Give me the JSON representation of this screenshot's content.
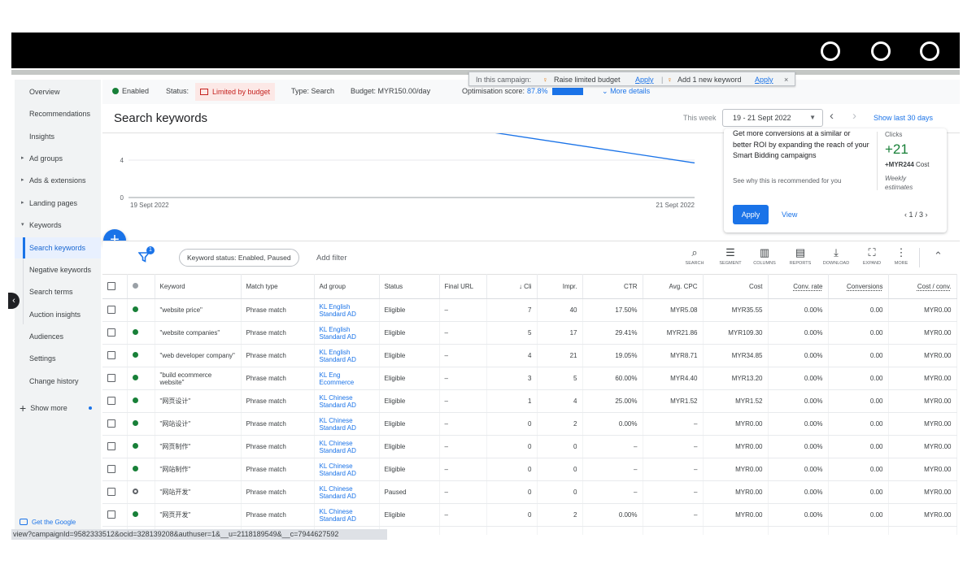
{
  "sidebar": {
    "items": [
      {
        "label": "Overview",
        "caret": ""
      },
      {
        "label": "Recommendations",
        "caret": ""
      },
      {
        "label": "Insights",
        "caret": ""
      },
      {
        "label": "Ad groups",
        "caret": "▸"
      },
      {
        "label": "Ads & extensions",
        "caret": "▸"
      },
      {
        "label": "Landing pages",
        "caret": "▸"
      },
      {
        "label": "Keywords",
        "caret": "▾"
      },
      {
        "label": "Search keywords",
        "caret": ""
      },
      {
        "label": "Negative keywords",
        "caret": ""
      },
      {
        "label": "Search terms",
        "caret": ""
      },
      {
        "label": "Auction insights",
        "caret": ""
      },
      {
        "label": "Audiences",
        "caret": ""
      },
      {
        "label": "Settings",
        "caret": ""
      },
      {
        "label": "Change history",
        "caret": ""
      }
    ],
    "show_more": "Show more",
    "get_google": "Get the Google"
  },
  "status": {
    "enabled": "Enabled",
    "status_label": "Status:",
    "limited": "Limited by budget",
    "type": "Type: Search",
    "budget": "Budget: MYR150.00/day",
    "score_label": "Optimisation score:",
    "score_value": "87.8%",
    "more_details": "More details"
  },
  "tooltip": {
    "prefix": "In this campaign:",
    "item1": "Raise limited budget",
    "item2": "Add 1 new keyword",
    "apply": "Apply",
    "close": "×"
  },
  "header": {
    "title": "Search keywords",
    "this_week": "This week",
    "date_range": "19 - 21 Sept 2022",
    "show_last": "Show last 30 days"
  },
  "chart_data": {
    "type": "line",
    "x": [
      "19 Sept 2022",
      "21 Sept 2022"
    ],
    "y_ticks": [
      0,
      4
    ],
    "series": [
      {
        "values": [
          7.2,
          3.7
        ]
      }
    ],
    "x_tick_labels": [
      "19 Sept 2022",
      "21 Sept 2022"
    ],
    "ylim": [
      0,
      8
    ],
    "grid": true,
    "color": "#1a73e8"
  },
  "rec": {
    "text": "Get more conversions at a similar or better ROI by expanding the reach of your Smart Bidding campaigns",
    "why": "See why this is recommended for you",
    "metric_label": "Clicks",
    "metric_value": "+21",
    "cost_value": "+MYR244",
    "cost_label": "Cost",
    "weekly": "Weekly estimates",
    "apply": "Apply",
    "view": "View",
    "pager": "1 / 3"
  },
  "filter": {
    "badge": "1",
    "chip": "Keyword status: Enabled, Paused",
    "add_filter": "Add filter"
  },
  "toolbar": [
    {
      "icon": "search-icon",
      "glyph": "⌕",
      "label": "SEARCH"
    },
    {
      "icon": "segment-icon",
      "glyph": "☰",
      "label": "SEGMENT"
    },
    {
      "icon": "columns-icon",
      "glyph": "▥",
      "label": "COLUMNS"
    },
    {
      "icon": "reports-icon",
      "glyph": "▤",
      "label": "REPORTS"
    },
    {
      "icon": "download-icon",
      "glyph": "⤓",
      "label": "DOWNLOAD"
    },
    {
      "icon": "expand-icon",
      "glyph": "⛶",
      "label": "EXPAND"
    },
    {
      "icon": "more-icon",
      "glyph": "⋮",
      "label": "MORE"
    }
  ],
  "columns": [
    "Keyword",
    "Match type",
    "Ad group",
    "Status",
    "Final URL",
    "↓ Cli",
    "Impr.",
    "CTR",
    "Avg. CPC",
    "Cost",
    "Conv. rate",
    "Conversions",
    "Cost / conv."
  ],
  "rows": [
    {
      "keyword": "\"website price\"",
      "match": "Phrase match",
      "ad_group": "KL English Standard AD",
      "status": "Eligible",
      "url": "–",
      "clicks": "7",
      "impr": "40",
      "ctr": "17.50%",
      "cpc": "MYR5.08",
      "cost": "MYR35.55",
      "conv_rate": "0.00%",
      "conv": "0.00",
      "cost_conv": "MYR0.00",
      "paused": false
    },
    {
      "keyword": "\"website companies\"",
      "match": "Phrase match",
      "ad_group": "KL English Standard AD",
      "status": "Eligible",
      "url": "–",
      "clicks": "5",
      "impr": "17",
      "ctr": "29.41%",
      "cpc": "MYR21.86",
      "cost": "MYR109.30",
      "conv_rate": "0.00%",
      "conv": "0.00",
      "cost_conv": "MYR0.00",
      "paused": false
    },
    {
      "keyword": "\"web developer company\"",
      "match": "Phrase match",
      "ad_group": "KL English Standard AD",
      "status": "Eligible",
      "url": "–",
      "clicks": "4",
      "impr": "21",
      "ctr": "19.05%",
      "cpc": "MYR8.71",
      "cost": "MYR34.85",
      "conv_rate": "0.00%",
      "conv": "0.00",
      "cost_conv": "MYR0.00",
      "paused": false
    },
    {
      "keyword": "\"build ecommerce website\"",
      "match": "Phrase match",
      "ad_group": "KL Eng Ecommerce",
      "status": "Eligible",
      "url": "–",
      "clicks": "3",
      "impr": "5",
      "ctr": "60.00%",
      "cpc": "MYR4.40",
      "cost": "MYR13.20",
      "conv_rate": "0.00%",
      "conv": "0.00",
      "cost_conv": "MYR0.00",
      "paused": false
    },
    {
      "keyword": "\"网页设计\"",
      "match": "Phrase match",
      "ad_group": "KL Chinese Standard AD",
      "status": "Eligible",
      "url": "–",
      "clicks": "1",
      "impr": "4",
      "ctr": "25.00%",
      "cpc": "MYR1.52",
      "cost": "MYR1.52",
      "conv_rate": "0.00%",
      "conv": "0.00",
      "cost_conv": "MYR0.00",
      "paused": false
    },
    {
      "keyword": "\"网站设计\"",
      "match": "Phrase match",
      "ad_group": "KL Chinese Standard AD",
      "status": "Eligible",
      "url": "–",
      "clicks": "0",
      "impr": "2",
      "ctr": "0.00%",
      "cpc": "–",
      "cost": "MYR0.00",
      "conv_rate": "0.00%",
      "conv": "0.00",
      "cost_conv": "MYR0.00",
      "paused": false
    },
    {
      "keyword": "\"网页制作\"",
      "match": "Phrase match",
      "ad_group": "KL Chinese Standard AD",
      "status": "Eligible",
      "url": "–",
      "clicks": "0",
      "impr": "0",
      "ctr": "–",
      "cpc": "–",
      "cost": "MYR0.00",
      "conv_rate": "0.00%",
      "conv": "0.00",
      "cost_conv": "MYR0.00",
      "paused": false
    },
    {
      "keyword": "\"网站制作\"",
      "match": "Phrase match",
      "ad_group": "KL Chinese Standard AD",
      "status": "Eligible",
      "url": "–",
      "clicks": "0",
      "impr": "0",
      "ctr": "–",
      "cpc": "–",
      "cost": "MYR0.00",
      "conv_rate": "0.00%",
      "conv": "0.00",
      "cost_conv": "MYR0.00",
      "paused": false
    },
    {
      "keyword": "\"网站开发\"",
      "match": "Phrase match",
      "ad_group": "KL Chinese Standard AD",
      "status": "Paused",
      "url": "–",
      "clicks": "0",
      "impr": "0",
      "ctr": "–",
      "cpc": "–",
      "cost": "MYR0.00",
      "conv_rate": "0.00%",
      "conv": "0.00",
      "cost_conv": "MYR0.00",
      "paused": true
    },
    {
      "keyword": "\"网页开发\"",
      "match": "Phrase match",
      "ad_group": "KL Chinese Standard AD",
      "status": "Eligible",
      "url": "–",
      "clicks": "0",
      "impr": "2",
      "ctr": "0.00%",
      "cpc": "–",
      "cost": "MYR0.00",
      "conv_rate": "0.00%",
      "conv": "0.00",
      "cost_conv": "MYR0.00",
      "paused": false
    }
  ],
  "url": "view?campaignId=9582333512&ocid=328139208&authuser=1&__u=2118189549&__c=7944627592"
}
